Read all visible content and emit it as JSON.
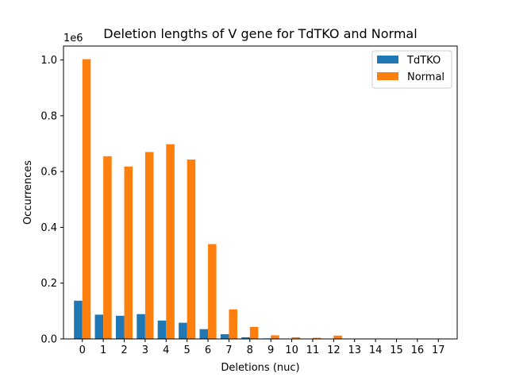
{
  "chart_data": {
    "type": "bar",
    "title": "Deletion lengths of V gene for TdTKO and Normal",
    "xlabel": "Deletions (nuc)",
    "ylabel": "Occurrences",
    "y_scale_label": "1e6",
    "y_tick_labels": [
      "0.0",
      "0.2",
      "0.4",
      "0.6",
      "0.8",
      "1.0"
    ],
    "ylim": [
      0,
      1.05
    ],
    "ylim_units": "millions of occurrences",
    "categories": [
      "0",
      "1",
      "2",
      "3",
      "4",
      "5",
      "6",
      "7",
      "8",
      "9",
      "10",
      "11",
      "12",
      "13",
      "14",
      "15",
      "16",
      "17"
    ],
    "series": [
      {
        "name": "TdTKO",
        "color": "#1f77b4",
        "values": [
          0.137,
          0.087,
          0.083,
          0.089,
          0.066,
          0.058,
          0.035,
          0.017,
          0.006,
          0.002,
          0.001,
          0.001,
          0.0005,
          0.0002,
          0.0001,
          0.0,
          0.0,
          0.0
        ]
      },
      {
        "name": "Normal",
        "color": "#ff7f0e",
        "values": [
          1.003,
          0.655,
          0.618,
          0.67,
          0.698,
          0.643,
          0.34,
          0.106,
          0.043,
          0.013,
          0.006,
          0.004,
          0.012,
          0.0008,
          0.0004,
          0.0002,
          0.0001,
          0.0
        ]
      }
    ],
    "legend_position": "top-right",
    "grid": false
  }
}
